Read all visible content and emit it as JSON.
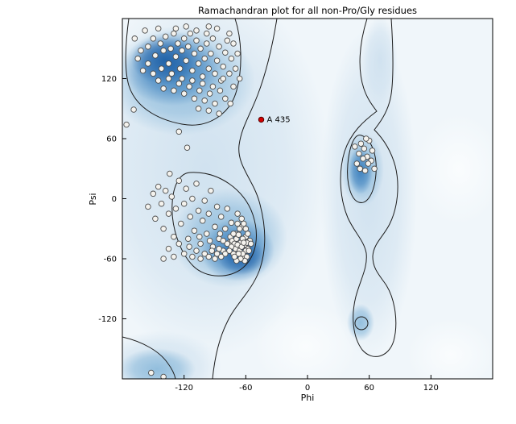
{
  "figure": {
    "title": "Ramachandran plot for all non-Pro/Gly residues",
    "xlabel": "Phi",
    "ylabel": "Psi"
  },
  "chart_data": {
    "type": "scatter",
    "title": "Ramachandran plot for all non-Pro/Gly residues",
    "xlabel": "Phi",
    "ylabel": "Psi",
    "xlim": [
      -180,
      180
    ],
    "ylim": [
      -180,
      180
    ],
    "xticks": [
      -120,
      -60,
      0,
      60,
      120
    ],
    "yticks": [
      120,
      60,
      0,
      -60,
      -120
    ],
    "grid": false,
    "legend": "none",
    "background": "density map of favored/allowed Ramachandran regions with contour lines",
    "colors": {
      "density_low": "#f0f6fa",
      "density_mid": "#cfe1ef",
      "density_high": "#8fbcdc",
      "density_core": "#3b7fbd",
      "density_deep": "#1e5fa6",
      "contour": "#1c1c1c",
      "point_fill": "#f5f3ee",
      "point_stroke": "#4d4d4d",
      "highlight_fill": "#d40000",
      "highlight_stroke": "#550000"
    },
    "series": [
      {
        "name": "residues",
        "marker": "circle",
        "points": [
          [
            -168,
            160
          ],
          [
            -162,
            148
          ],
          [
            -158,
            168
          ],
          [
            -155,
            152
          ],
          [
            -150,
            160
          ],
          [
            -148,
            143
          ],
          [
            -145,
            170
          ],
          [
            -143,
            155
          ],
          [
            -140,
            148
          ],
          [
            -138,
            162
          ],
          [
            -135,
            135
          ],
          [
            -133,
            150
          ],
          [
            -130,
            165
          ],
          [
            -128,
            142
          ],
          [
            -126,
            155
          ],
          [
            -124,
            130
          ],
          [
            -122,
            148
          ],
          [
            -120,
            160
          ],
          [
            -118,
            138
          ],
          [
            -116,
            152
          ],
          [
            -114,
            165
          ],
          [
            -112,
            128
          ],
          [
            -110,
            145
          ],
          [
            -108,
            158
          ],
          [
            -106,
            135
          ],
          [
            -104,
            150
          ],
          [
            -102,
            122
          ],
          [
            -100,
            140
          ],
          [
            -98,
            155
          ],
          [
            -96,
            130
          ],
          [
            -94,
            145
          ],
          [
            -92,
            160
          ],
          [
            -90,
            125
          ],
          [
            -88,
            138
          ],
          [
            -86,
            152
          ],
          [
            -84,
            118
          ],
          [
            -82,
            132
          ],
          [
            -80,
            146
          ],
          [
            -78,
            158
          ],
          [
            -76,
            125
          ],
          [
            -74,
            140
          ],
          [
            -72,
            112
          ],
          [
            -70,
            130
          ],
          [
            -68,
            145
          ],
          [
            -66,
            120
          ],
          [
            -150,
            125
          ],
          [
            -145,
            118
          ],
          [
            -140,
            110
          ],
          [
            -135,
            120
          ],
          [
            -130,
            108
          ],
          [
            -125,
            115
          ],
          [
            -120,
            105
          ],
          [
            -115,
            112
          ],
          [
            -110,
            100
          ],
          [
            -105,
            108
          ],
          [
            -100,
            98
          ],
          [
            -95,
            105
          ],
          [
            -90,
            95
          ],
          [
            -155,
            135
          ],
          [
            -160,
            128
          ],
          [
            -165,
            140
          ],
          [
            -85,
            108
          ],
          [
            -80,
            100
          ],
          [
            -75,
            95
          ],
          [
            -128,
            170
          ],
          [
            -118,
            172
          ],
          [
            -108,
            168
          ],
          [
            -98,
            165
          ],
          [
            -88,
            170
          ],
          [
            -142,
            130
          ],
          [
            -132,
            125
          ],
          [
            -122,
            120
          ],
          [
            -112,
            118
          ],
          [
            -102,
            115
          ],
          [
            -92,
            112
          ],
          [
            -82,
            120
          ],
          [
            -72,
            155
          ],
          [
            -76,
            165
          ],
          [
            -96,
            172
          ],
          [
            -106,
            90
          ],
          [
            -96,
            88
          ],
          [
            -86,
            85
          ],
          [
            -169,
            89
          ],
          [
            -125,
            67
          ],
          [
            -176,
            74
          ],
          [
            -117,
            51
          ],
          [
            -134,
            25
          ],
          [
            -155,
            -8
          ],
          [
            -150,
            5
          ],
          [
            -148,
            -20
          ],
          [
            -145,
            12
          ],
          [
            -142,
            -5
          ],
          [
            -140,
            -30
          ],
          [
            -138,
            8
          ],
          [
            -135,
            -15
          ],
          [
            -132,
            2
          ],
          [
            -130,
            -38
          ],
          [
            -128,
            -10
          ],
          [
            -125,
            18
          ],
          [
            -123,
            -25
          ],
          [
            -120,
            -5
          ],
          [
            -118,
            10
          ],
          [
            -116,
            -40
          ],
          [
            -114,
            -18
          ],
          [
            -112,
            0
          ],
          [
            -110,
            -32
          ],
          [
            -108,
            15
          ],
          [
            -106,
            -12
          ],
          [
            -104,
            -45
          ],
          [
            -102,
            -22
          ],
          [
            -100,
            -2
          ],
          [
            -98,
            -35
          ],
          [
            -96,
            -15
          ],
          [
            -94,
            8
          ],
          [
            -92,
            -48
          ],
          [
            -90,
            -28
          ],
          [
            -88,
            -8
          ],
          [
            -86,
            -40
          ],
          [
            -84,
            -18
          ],
          [
            -82,
            -52
          ],
          [
            -80,
            -30
          ],
          [
            -78,
            -10
          ],
          [
            -76,
            -44
          ],
          [
            -74,
            -24
          ],
          [
            -72,
            -55
          ],
          [
            -70,
            -35
          ],
          [
            -68,
            -15
          ],
          [
            -66,
            -48
          ],
          [
            -64,
            -28
          ],
          [
            -62,
            -58
          ],
          [
            -60,
            -38
          ],
          [
            -58,
            -50
          ],
          [
            -56,
            -42
          ],
          [
            -75,
            -38
          ],
          [
            -73,
            -42
          ],
          [
            -71,
            -45
          ],
          [
            -69,
            -40
          ],
          [
            -67,
            -36
          ],
          [
            -65,
            -44
          ],
          [
            -63,
            -40
          ],
          [
            -61,
            -46
          ],
          [
            -59,
            -44
          ],
          [
            -70,
            -50
          ],
          [
            -68,
            -46
          ],
          [
            -66,
            -52
          ],
          [
            -64,
            -48
          ],
          [
            -62,
            -44
          ],
          [
            -60,
            -52
          ],
          [
            -72,
            -35
          ],
          [
            -74,
            -48
          ],
          [
            -76,
            -52
          ],
          [
            -78,
            -45
          ],
          [
            -80,
            -55
          ],
          [
            -82,
            -42
          ],
          [
            -84,
            -58
          ],
          [
            -86,
            -50
          ],
          [
            -88,
            -55
          ],
          [
            -90,
            -60
          ],
          [
            -93,
            -52
          ],
          [
            -96,
            -58
          ],
          [
            -100,
            -55
          ],
          [
            -104,
            -60
          ],
          [
            -108,
            -52
          ],
          [
            -112,
            -58
          ],
          [
            -85,
            -35
          ],
          [
            -95,
            -42
          ],
          [
            -105,
            -38
          ],
          [
            -115,
            -48
          ],
          [
            -120,
            -55
          ],
          [
            -125,
            -45
          ],
          [
            -130,
            -58
          ],
          [
            -135,
            -50
          ],
          [
            -140,
            -60
          ],
          [
            -60,
            -30
          ],
          [
            -58,
            -35
          ],
          [
            -62,
            -25
          ],
          [
            -64,
            -20
          ],
          [
            -66,
            -30
          ],
          [
            -68,
            -25
          ],
          [
            -55,
            -45
          ],
          [
            -57,
            -52
          ],
          [
            -59,
            -58
          ],
          [
            -61,
            -62
          ],
          [
            -63,
            -55
          ],
          [
            -65,
            -60
          ],
          [
            -67,
            -55
          ],
          [
            -69,
            -62
          ],
          [
            -71,
            -58
          ],
          [
            -140,
            -178
          ],
          [
            -152,
            -174
          ],
          [
            58,
            42
          ],
          [
            55,
            50
          ],
          [
            62,
            38
          ],
          [
            50,
            45
          ],
          [
            65,
            30
          ],
          [
            52,
            55
          ],
          [
            60,
            58
          ],
          [
            48,
            35
          ],
          [
            56,
            28
          ],
          [
            63,
            48
          ],
          [
            54,
            40
          ],
          [
            59,
            35
          ],
          [
            51,
            30
          ],
          [
            57,
            60
          ],
          [
            46,
            52
          ]
        ]
      },
      {
        "name": "highlighted-residue",
        "label": "A 435",
        "marker": "circle",
        "points": [
          [
            -45,
            79
          ]
        ]
      }
    ]
  }
}
